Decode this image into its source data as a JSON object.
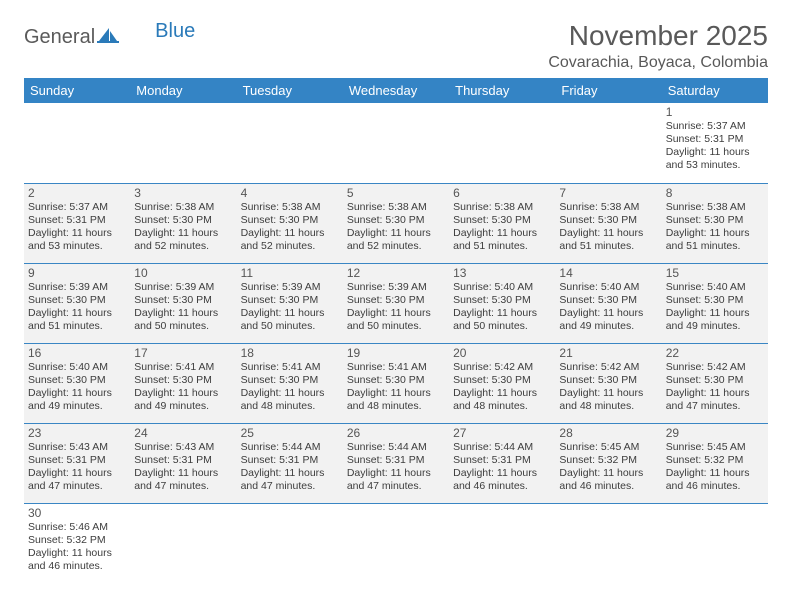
{
  "logo": {
    "word1": "General",
    "word2": "Blue"
  },
  "title": "November 2025",
  "location": "Covarachia, Boyaca, Colombia",
  "colors": {
    "header_bg": "#3484c5",
    "header_text": "#ffffff",
    "cell_border": "#3a86c4",
    "shaded_bg": "#f2f2f2",
    "text": "#3d3d3d",
    "title_color": "#595959"
  },
  "dayHeaders": [
    "Sunday",
    "Monday",
    "Tuesday",
    "Wednesday",
    "Thursday",
    "Friday",
    "Saturday"
  ],
  "weeks": [
    [
      null,
      null,
      null,
      null,
      null,
      null,
      {
        "n": "1",
        "sr": "Sunrise: 5:37 AM",
        "ss": "Sunset: 5:31 PM",
        "dl": "Daylight: 11 hours and 53 minutes."
      }
    ],
    [
      {
        "n": "2",
        "sr": "Sunrise: 5:37 AM",
        "ss": "Sunset: 5:31 PM",
        "dl": "Daylight: 11 hours and 53 minutes."
      },
      {
        "n": "3",
        "sr": "Sunrise: 5:38 AM",
        "ss": "Sunset: 5:30 PM",
        "dl": "Daylight: 11 hours and 52 minutes."
      },
      {
        "n": "4",
        "sr": "Sunrise: 5:38 AM",
        "ss": "Sunset: 5:30 PM",
        "dl": "Daylight: 11 hours and 52 minutes."
      },
      {
        "n": "5",
        "sr": "Sunrise: 5:38 AM",
        "ss": "Sunset: 5:30 PM",
        "dl": "Daylight: 11 hours and 52 minutes."
      },
      {
        "n": "6",
        "sr": "Sunrise: 5:38 AM",
        "ss": "Sunset: 5:30 PM",
        "dl": "Daylight: 11 hours and 51 minutes."
      },
      {
        "n": "7",
        "sr": "Sunrise: 5:38 AM",
        "ss": "Sunset: 5:30 PM",
        "dl": "Daylight: 11 hours and 51 minutes."
      },
      {
        "n": "8",
        "sr": "Sunrise: 5:38 AM",
        "ss": "Sunset: 5:30 PM",
        "dl": "Daylight: 11 hours and 51 minutes."
      }
    ],
    [
      {
        "n": "9",
        "sr": "Sunrise: 5:39 AM",
        "ss": "Sunset: 5:30 PM",
        "dl": "Daylight: 11 hours and 51 minutes."
      },
      {
        "n": "10",
        "sr": "Sunrise: 5:39 AM",
        "ss": "Sunset: 5:30 PM",
        "dl": "Daylight: 11 hours and 50 minutes."
      },
      {
        "n": "11",
        "sr": "Sunrise: 5:39 AM",
        "ss": "Sunset: 5:30 PM",
        "dl": "Daylight: 11 hours and 50 minutes."
      },
      {
        "n": "12",
        "sr": "Sunrise: 5:39 AM",
        "ss": "Sunset: 5:30 PM",
        "dl": "Daylight: 11 hours and 50 minutes."
      },
      {
        "n": "13",
        "sr": "Sunrise: 5:40 AM",
        "ss": "Sunset: 5:30 PM",
        "dl": "Daylight: 11 hours and 50 minutes."
      },
      {
        "n": "14",
        "sr": "Sunrise: 5:40 AM",
        "ss": "Sunset: 5:30 PM",
        "dl": "Daylight: 11 hours and 49 minutes."
      },
      {
        "n": "15",
        "sr": "Sunrise: 5:40 AM",
        "ss": "Sunset: 5:30 PM",
        "dl": "Daylight: 11 hours and 49 minutes."
      }
    ],
    [
      {
        "n": "16",
        "sr": "Sunrise: 5:40 AM",
        "ss": "Sunset: 5:30 PM",
        "dl": "Daylight: 11 hours and 49 minutes."
      },
      {
        "n": "17",
        "sr": "Sunrise: 5:41 AM",
        "ss": "Sunset: 5:30 PM",
        "dl": "Daylight: 11 hours and 49 minutes."
      },
      {
        "n": "18",
        "sr": "Sunrise: 5:41 AM",
        "ss": "Sunset: 5:30 PM",
        "dl": "Daylight: 11 hours and 48 minutes."
      },
      {
        "n": "19",
        "sr": "Sunrise: 5:41 AM",
        "ss": "Sunset: 5:30 PM",
        "dl": "Daylight: 11 hours and 48 minutes."
      },
      {
        "n": "20",
        "sr": "Sunrise: 5:42 AM",
        "ss": "Sunset: 5:30 PM",
        "dl": "Daylight: 11 hours and 48 minutes."
      },
      {
        "n": "21",
        "sr": "Sunrise: 5:42 AM",
        "ss": "Sunset: 5:30 PM",
        "dl": "Daylight: 11 hours and 48 minutes."
      },
      {
        "n": "22",
        "sr": "Sunrise: 5:42 AM",
        "ss": "Sunset: 5:30 PM",
        "dl": "Daylight: 11 hours and 47 minutes."
      }
    ],
    [
      {
        "n": "23",
        "sr": "Sunrise: 5:43 AM",
        "ss": "Sunset: 5:31 PM",
        "dl": "Daylight: 11 hours and 47 minutes."
      },
      {
        "n": "24",
        "sr": "Sunrise: 5:43 AM",
        "ss": "Sunset: 5:31 PM",
        "dl": "Daylight: 11 hours and 47 minutes."
      },
      {
        "n": "25",
        "sr": "Sunrise: 5:44 AM",
        "ss": "Sunset: 5:31 PM",
        "dl": "Daylight: 11 hours and 47 minutes."
      },
      {
        "n": "26",
        "sr": "Sunrise: 5:44 AM",
        "ss": "Sunset: 5:31 PM",
        "dl": "Daylight: 11 hours and 47 minutes."
      },
      {
        "n": "27",
        "sr": "Sunrise: 5:44 AM",
        "ss": "Sunset: 5:31 PM",
        "dl": "Daylight: 11 hours and 46 minutes."
      },
      {
        "n": "28",
        "sr": "Sunrise: 5:45 AM",
        "ss": "Sunset: 5:32 PM",
        "dl": "Daylight: 11 hours and 46 minutes."
      },
      {
        "n": "29",
        "sr": "Sunrise: 5:45 AM",
        "ss": "Sunset: 5:32 PM",
        "dl": "Daylight: 11 hours and 46 minutes."
      }
    ],
    [
      {
        "n": "30",
        "sr": "Sunrise: 5:46 AM",
        "ss": "Sunset: 5:32 PM",
        "dl": "Daylight: 11 hours and 46 minutes."
      },
      null,
      null,
      null,
      null,
      null,
      null
    ]
  ]
}
